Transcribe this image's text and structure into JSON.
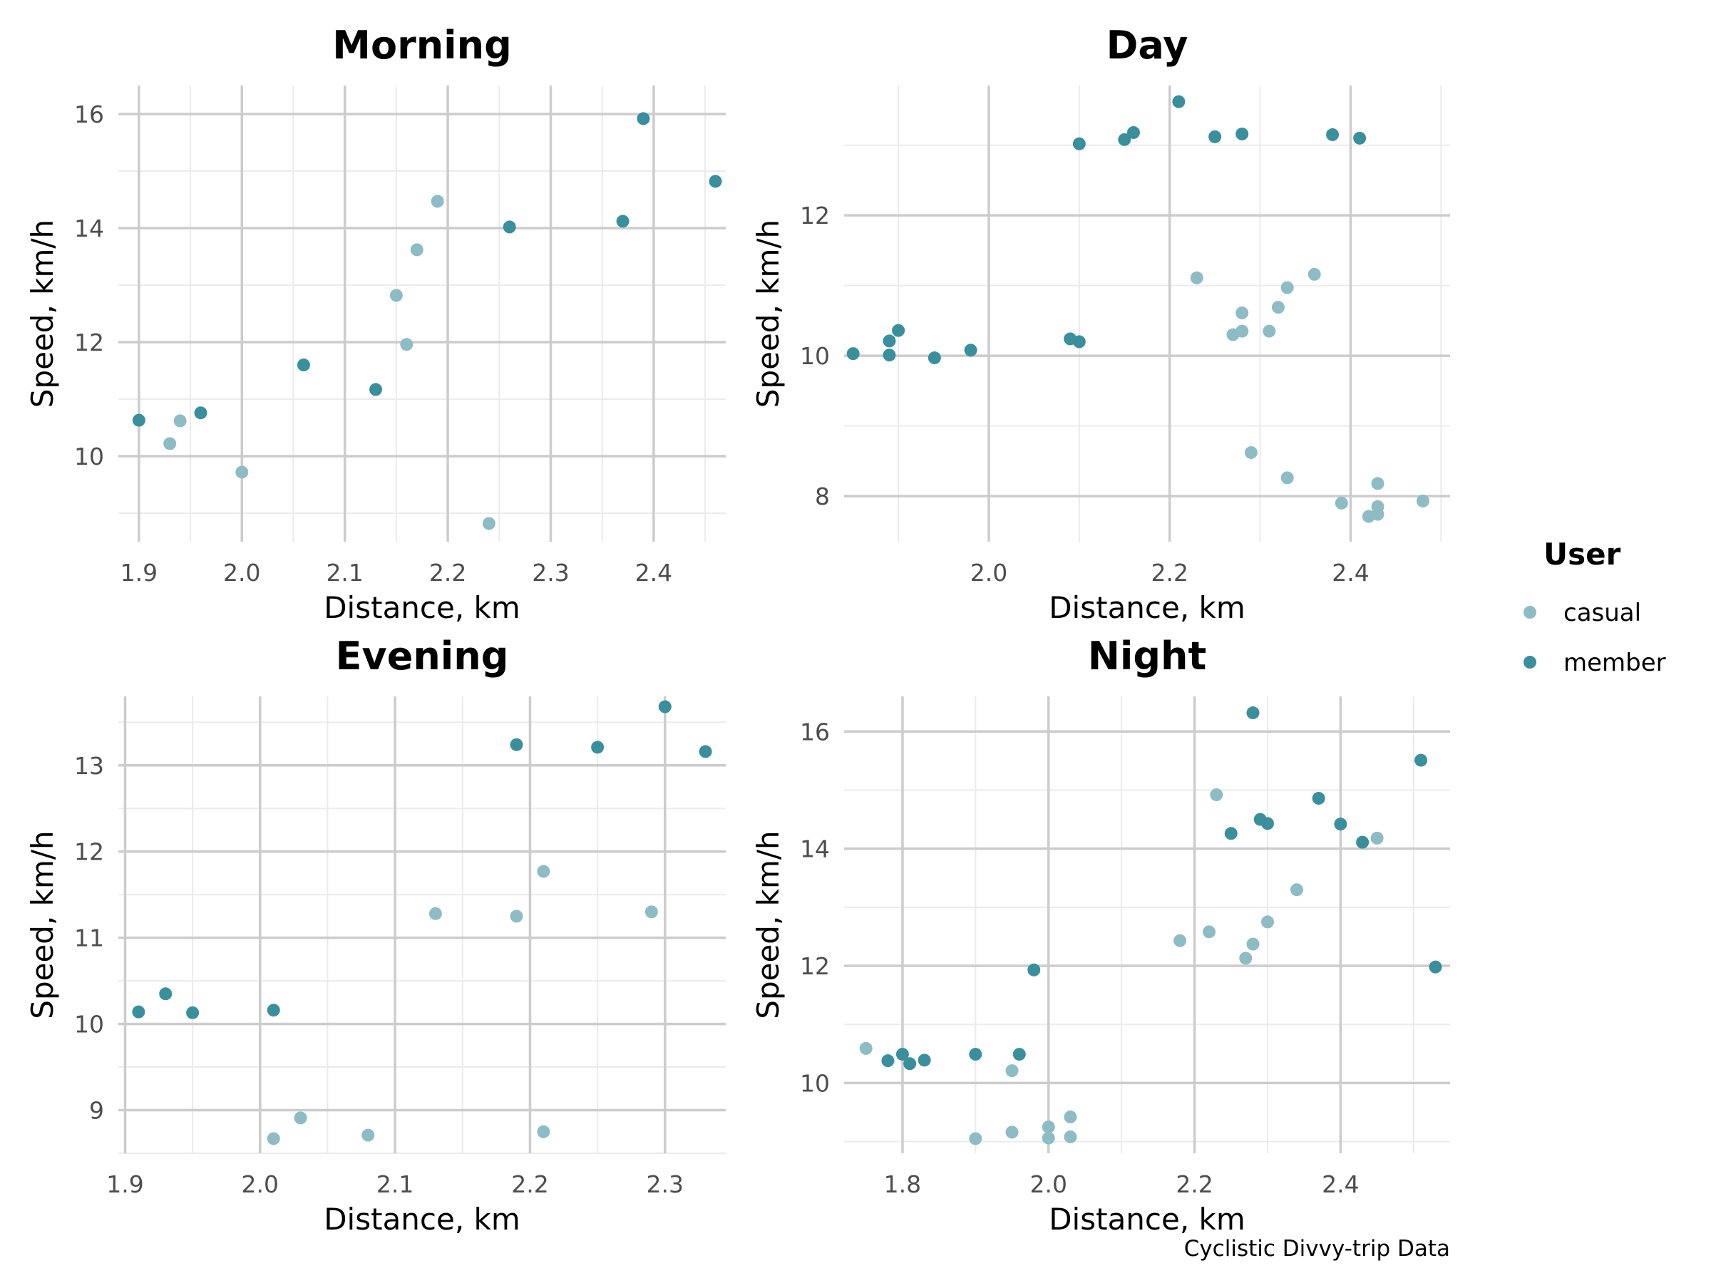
{
  "caption": "Cyclistic Divvy-trip Data",
  "legend": {
    "title": "User",
    "items": [
      {
        "label": "casual",
        "color": "#8dbcc5"
      },
      {
        "label": "member",
        "color": "#3a8f9d"
      }
    ]
  },
  "chart_data": [
    {
      "type": "scatter",
      "title": "Morning",
      "xlabel": "Distance, km",
      "ylabel": "Speed, km/h",
      "xlim": [
        1.88,
        2.47
      ],
      "ylim": [
        8.5,
        16.5
      ],
      "xticks": [
        1.9,
        2.0,
        2.1,
        2.2,
        2.3,
        2.4
      ],
      "xtick_labels": [
        "1.9",
        "2.0",
        "2.1",
        "2.2",
        "2.3",
        "2.4"
      ],
      "yticks": [
        10,
        12,
        14,
        16
      ],
      "ytick_labels": [
        "10",
        "12",
        "14",
        "16"
      ],
      "series": [
        {
          "name": "casual",
          "points": [
            [
              1.93,
              10.22
            ],
            [
              1.94,
              10.62
            ],
            [
              2.0,
              9.72
            ],
            [
              2.15,
              12.82
            ],
            [
              2.16,
              11.96
            ],
            [
              2.17,
              13.62
            ],
            [
              2.19,
              14.47
            ],
            [
              2.24,
              8.82
            ]
          ]
        },
        {
          "name": "member",
          "points": [
            [
              1.9,
              10.63
            ],
            [
              1.96,
              10.76
            ],
            [
              2.06,
              11.6
            ],
            [
              2.13,
              11.17
            ],
            [
              2.26,
              14.02
            ],
            [
              2.37,
              14.12
            ],
            [
              2.39,
              15.92
            ],
            [
              2.46,
              14.82
            ]
          ]
        }
      ]
    },
    {
      "type": "scatter",
      "title": "Day",
      "xlabel": "Distance, km",
      "ylabel": "Speed, km/h",
      "xlim": [
        1.84,
        2.51
      ],
      "ylim": [
        7.35,
        13.85
      ],
      "xticks": [
        2.0,
        2.2,
        2.4
      ],
      "xtick_labels": [
        "2.0",
        "2.2",
        "2.4"
      ],
      "yticks": [
        8,
        10,
        12
      ],
      "ytick_labels": [
        "8",
        "10",
        "12"
      ],
      "series": [
        {
          "name": "casual",
          "points": [
            [
              2.23,
              11.11
            ],
            [
              2.27,
              10.3
            ],
            [
              2.28,
              10.61
            ],
            [
              2.28,
              10.35
            ],
            [
              2.29,
              8.62
            ],
            [
              2.31,
              10.35
            ],
            [
              2.32,
              10.69
            ],
            [
              2.33,
              10.97
            ],
            [
              2.33,
              8.26
            ],
            [
              2.36,
              11.16
            ],
            [
              2.39,
              7.9
            ],
            [
              2.42,
              7.71
            ],
            [
              2.43,
              7.74
            ],
            [
              2.43,
              7.85
            ],
            [
              2.43,
              8.18
            ],
            [
              2.48,
              7.93
            ]
          ]
        },
        {
          "name": "member",
          "points": [
            [
              1.85,
              10.03
            ],
            [
              1.89,
              10.21
            ],
            [
              1.89,
              10.01
            ],
            [
              1.9,
              10.36
            ],
            [
              1.94,
              9.97
            ],
            [
              1.98,
              10.08
            ],
            [
              2.09,
              10.24
            ],
            [
              2.1,
              10.2
            ],
            [
              2.1,
              13.02
            ],
            [
              2.15,
              13.08
            ],
            [
              2.16,
              13.18
            ],
            [
              2.21,
              13.62
            ],
            [
              2.25,
              13.12
            ],
            [
              2.28,
              13.16
            ],
            [
              2.38,
              13.15
            ],
            [
              2.41,
              13.1
            ]
          ]
        }
      ]
    },
    {
      "type": "scatter",
      "title": "Evening",
      "xlabel": "Distance, km",
      "ylabel": "Speed, km/h",
      "xlim": [
        1.895,
        2.345
      ],
      "ylim": [
        8.5,
        13.8
      ],
      "xticks": [
        1.9,
        2.0,
        2.1,
        2.2,
        2.3
      ],
      "xtick_labels": [
        "1.9",
        "2.0",
        "2.1",
        "2.2",
        "2.3"
      ],
      "yticks": [
        9,
        10,
        11,
        12,
        13
      ],
      "ytick_labels": [
        "9",
        "10",
        "11",
        "12",
        "13"
      ],
      "series": [
        {
          "name": "casual",
          "points": [
            [
              2.01,
              8.67
            ],
            [
              2.03,
              8.91
            ],
            [
              2.08,
              8.71
            ],
            [
              2.13,
              11.28
            ],
            [
              2.19,
              11.25
            ],
            [
              2.21,
              11.77
            ],
            [
              2.21,
              8.75
            ],
            [
              2.29,
              11.3
            ]
          ]
        },
        {
          "name": "member",
          "points": [
            [
              1.91,
              10.14
            ],
            [
              1.93,
              10.35
            ],
            [
              1.95,
              10.13
            ],
            [
              2.01,
              10.16
            ],
            [
              2.19,
              13.24
            ],
            [
              2.25,
              13.21
            ],
            [
              2.3,
              13.68
            ],
            [
              2.33,
              13.16
            ]
          ]
        }
      ]
    },
    {
      "type": "scatter",
      "title": "Night",
      "xlabel": "Distance, km",
      "ylabel": "Speed, km/h",
      "xlim": [
        1.72,
        2.55
      ],
      "ylim": [
        8.8,
        16.6
      ],
      "xticks": [
        1.8,
        2.0,
        2.2,
        2.4
      ],
      "xtick_labels": [
        "1.8",
        "2.0",
        "2.2",
        "2.4"
      ],
      "yticks": [
        10,
        12,
        14,
        16
      ],
      "ytick_labels": [
        "10",
        "12",
        "14",
        "16"
      ],
      "series": [
        {
          "name": "casual",
          "points": [
            [
              1.75,
              10.59
            ],
            [
              1.9,
              9.05
            ],
            [
              1.95,
              10.21
            ],
            [
              1.95,
              9.16
            ],
            [
              2.0,
              9.06
            ],
            [
              2.0,
              9.25
            ],
            [
              2.03,
              9.08
            ],
            [
              2.03,
              9.42
            ],
            [
              2.18,
              12.43
            ],
            [
              2.22,
              12.58
            ],
            [
              2.23,
              14.92
            ],
            [
              2.27,
              12.13
            ],
            [
              2.28,
              12.37
            ],
            [
              2.3,
              12.75
            ],
            [
              2.34,
              13.3
            ],
            [
              2.45,
              14.18
            ]
          ]
        },
        {
          "name": "member",
          "points": [
            [
              1.78,
              10.38
            ],
            [
              1.8,
              10.49
            ],
            [
              1.81,
              10.33
            ],
            [
              1.83,
              10.39
            ],
            [
              1.9,
              10.49
            ],
            [
              1.96,
              10.49
            ],
            [
              1.98,
              11.93
            ],
            [
              2.25,
              14.26
            ],
            [
              2.28,
              16.32
            ],
            [
              2.29,
              14.5
            ],
            [
              2.3,
              14.43
            ],
            [
              2.37,
              14.86
            ],
            [
              2.4,
              14.42
            ],
            [
              2.43,
              14.11
            ],
            [
              2.51,
              15.51
            ],
            [
              2.53,
              11.98
            ]
          ]
        }
      ]
    }
  ]
}
